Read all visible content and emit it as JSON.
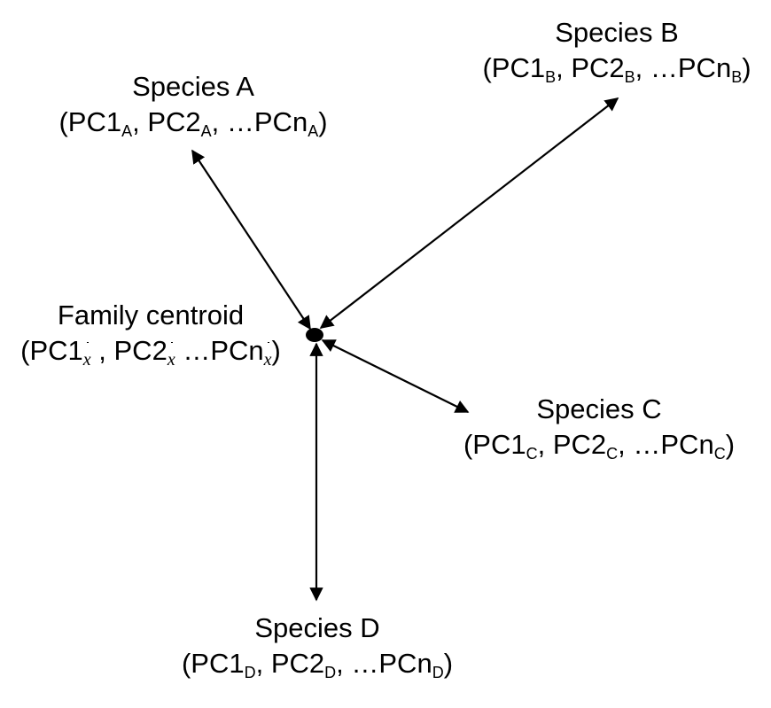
{
  "diagram": {
    "centroid": {
      "name": "Family centroid",
      "open": "(PC1",
      "sub": "x",
      "sep1": " , PC2",
      "sep2": " …PCn",
      "close": ")"
    },
    "species": [
      {
        "id": "A",
        "name": "Species A",
        "open": "(PC1",
        "sub": "A",
        "sep1": ", PC2",
        "sep2": ", …PCn",
        "close": ")"
      },
      {
        "id": "B",
        "name": "Species B",
        "open": "(PC1",
        "sub": "B",
        "sep1": ", PC2",
        "sep2": ", …PCn",
        "close": ")"
      },
      {
        "id": "C",
        "name": "Species C",
        "open": "(PC1",
        "sub": "C",
        "sep1": ", PC2",
        "sep2": ", …PCn",
        "close": ")"
      },
      {
        "id": "D",
        "name": "Species D",
        "open": "(PC1",
        "sub": "D",
        "sep1": ", PC2",
        "sep2": ", …PCn",
        "close": ")"
      }
    ]
  }
}
